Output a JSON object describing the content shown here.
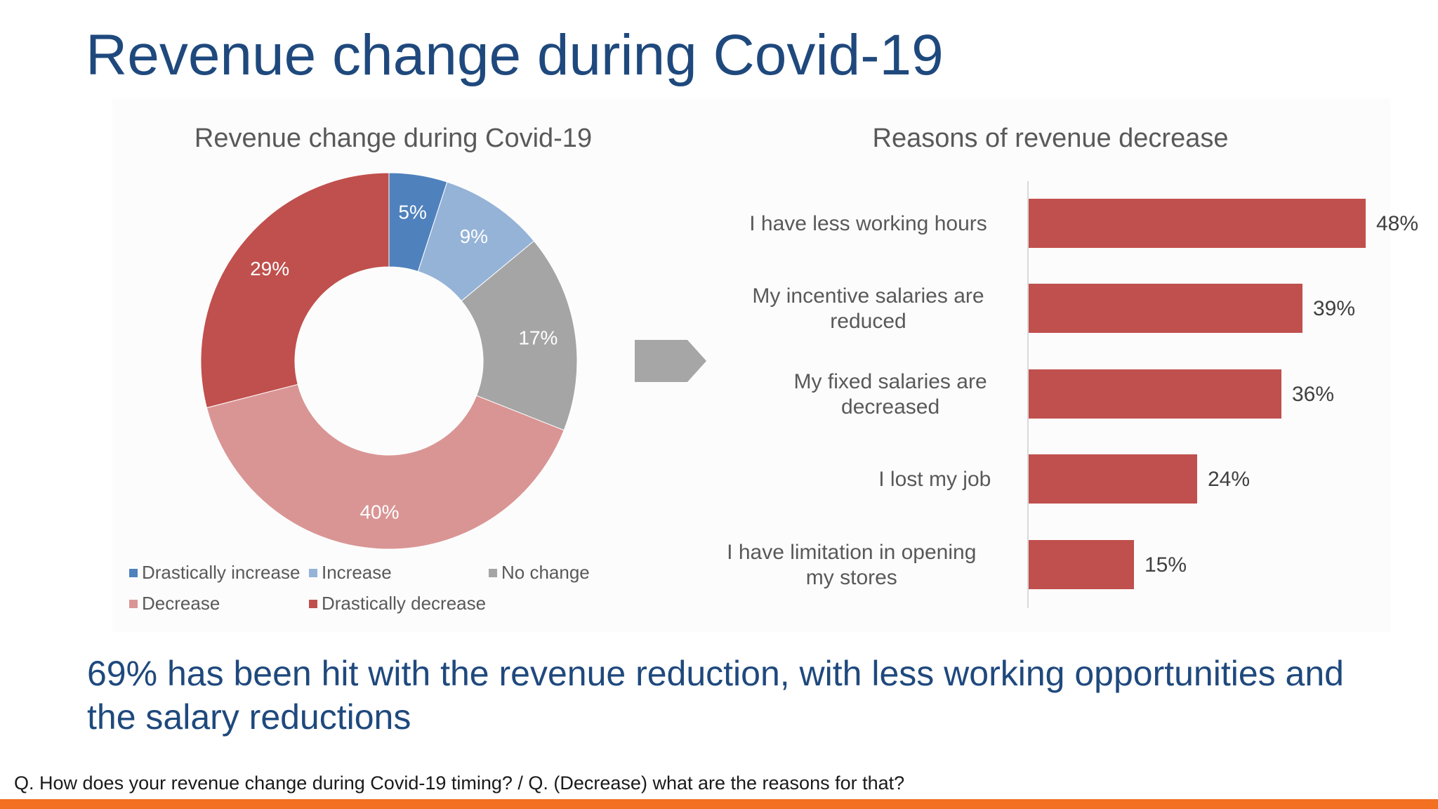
{
  "slide": {
    "title": "Revenue change during Covid-19",
    "conclusion": "69% has been hit with the revenue reduction, with less working opportunities and the salary reductions",
    "footnote": "Q. How does your revenue change during Covid-19 timing? / Q. (Decrease) what are the reasons for that?",
    "accent_color": "#F36F21",
    "title_color": "#1F497D"
  },
  "chart_data": [
    {
      "type": "pie",
      "variant": "donut",
      "title": "Revenue change during Covid-19",
      "categories": [
        "Drastically increase",
        "Increase",
        "No change",
        "Decrease",
        "Drastically decrease"
      ],
      "values": [
        5,
        9,
        17,
        40,
        29
      ],
      "labels": [
        "5%",
        "9%",
        "17%",
        "40%",
        "29%"
      ],
      "colors": [
        "#4F81BD",
        "#95B3D7",
        "#A5A5A5",
        "#D99594",
        "#C0504D"
      ],
      "legend_position": "bottom"
    },
    {
      "type": "bar",
      "orientation": "horizontal",
      "title": "Reasons of revenue decrease",
      "categories": [
        "I have less working hours",
        "My incentive salaries are reduced",
        "My fixed salaries are decreased",
        "I lost my job",
        "I have limitation in opening my stores"
      ],
      "category_lines": [
        [
          "I have less working hours"
        ],
        [
          "My incentive salaries are",
          "reduced"
        ],
        [
          "My fixed salaries are",
          "decreased"
        ],
        [
          "I lost my job"
        ],
        [
          "I have limitation in opening",
          "my stores"
        ]
      ],
      "values": [
        48,
        39,
        36,
        24,
        15
      ],
      "labels": [
        "48%",
        "39%",
        "36%",
        "24%",
        "15%"
      ],
      "color": "#C0504D",
      "xlim": [
        0,
        60
      ]
    }
  ]
}
